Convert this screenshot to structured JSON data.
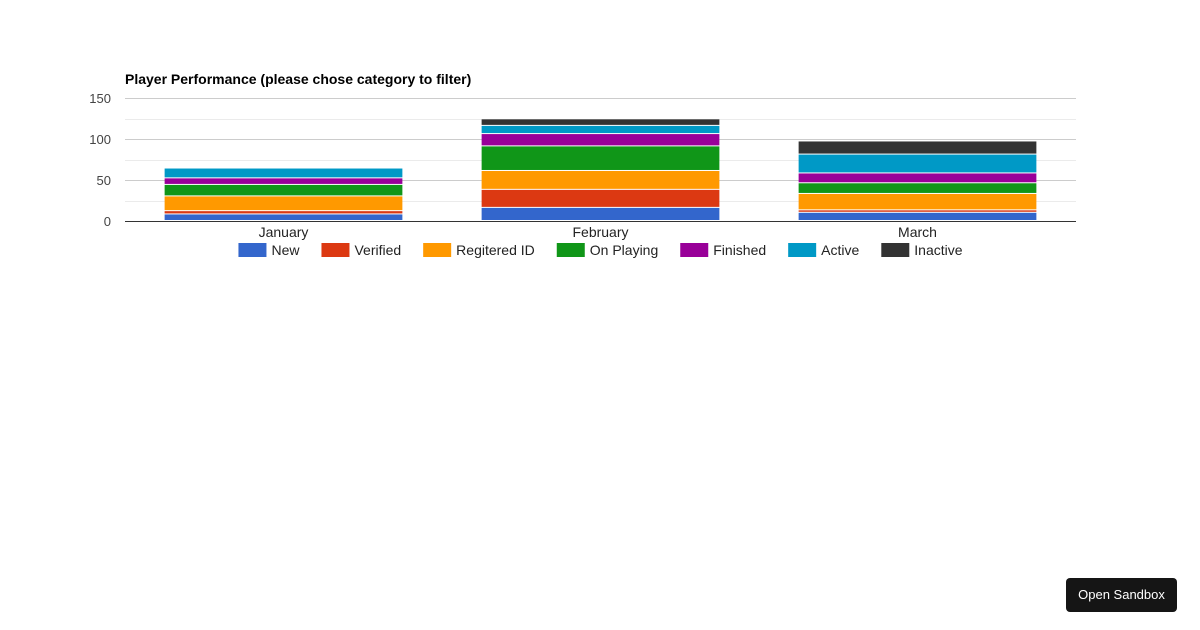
{
  "sandbox_button": {
    "label": "Open Sandbox"
  },
  "chart_data": {
    "type": "bar",
    "stacked": true,
    "title": "Player Performance (please chose category to filter)",
    "xlabel": "",
    "ylabel": "",
    "ylim": [
      0,
      150
    ],
    "yticks": [
      0,
      50,
      100,
      150
    ],
    "gridlines": true,
    "legend_position": "bottom",
    "categories": [
      "January",
      "February",
      "March"
    ],
    "series": [
      {
        "name": "New",
        "color": "#3366cc",
        "values": [
          8,
          16,
          10
        ]
      },
      {
        "name": "Verified",
        "color": "#dc3912",
        "values": [
          4,
          22,
          3
        ]
      },
      {
        "name": "Regitered ID",
        "color": "#ff9900",
        "values": [
          18,
          23,
          20
        ]
      },
      {
        "name": "On Playing",
        "color": "#109618",
        "values": [
          14,
          30,
          13
        ]
      },
      {
        "name": "Finished",
        "color": "#990099",
        "values": [
          8,
          15,
          12
        ]
      },
      {
        "name": "Active",
        "color": "#0099c6",
        "values": [
          12,
          10,
          23
        ]
      },
      {
        "name": "Inactive",
        "color": "#333333",
        "values": [
          0,
          8,
          16
        ]
      }
    ]
  }
}
